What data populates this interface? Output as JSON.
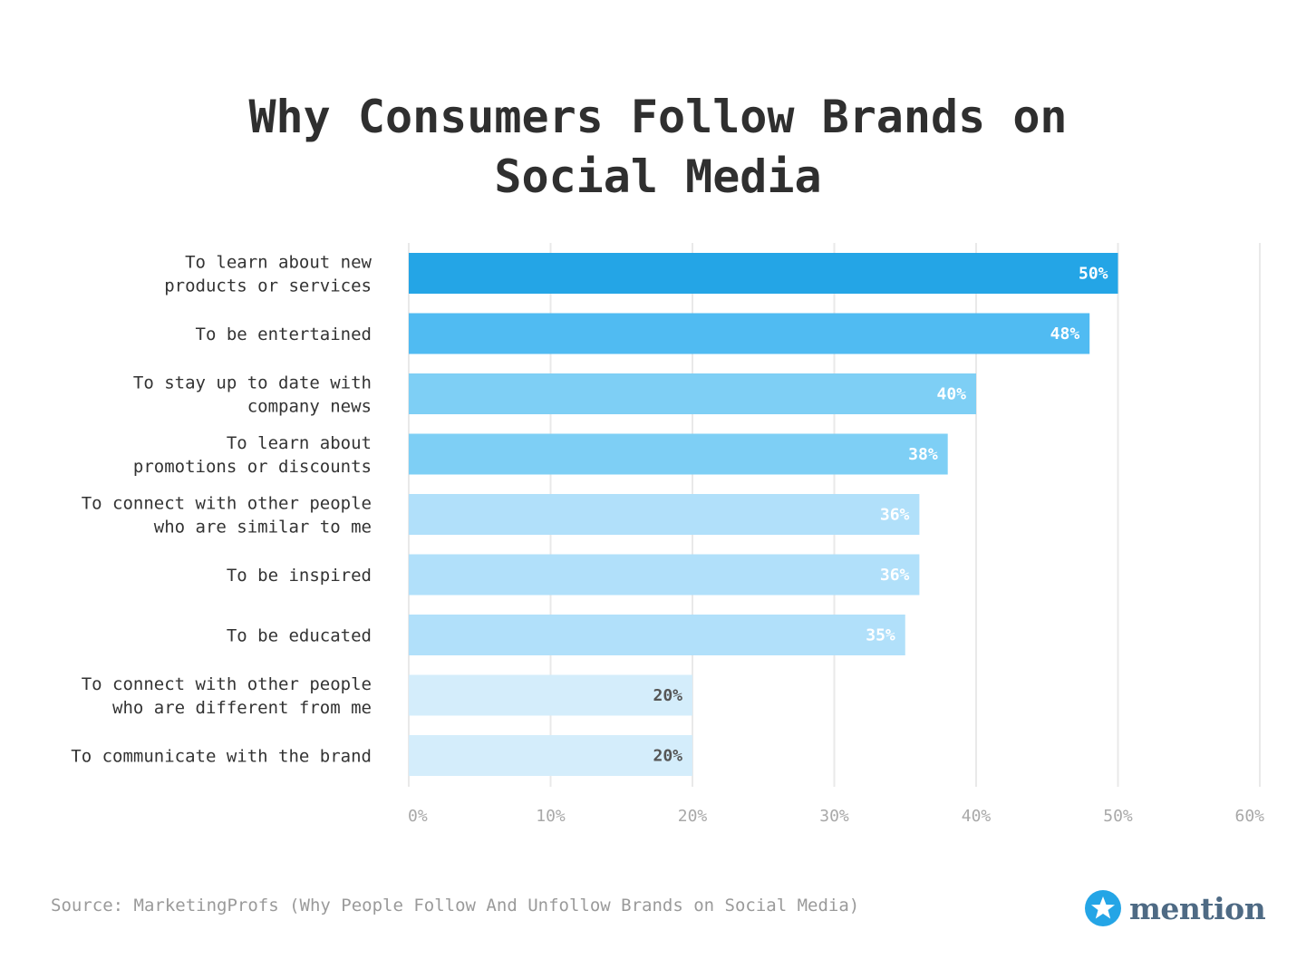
{
  "chart_data": {
    "type": "bar",
    "orientation": "horizontal",
    "title_lines": [
      "Why Consumers Follow Brands on",
      "Social Media"
    ],
    "categories": [
      [
        "To learn about new",
        "products or services"
      ],
      [
        "To be entertained"
      ],
      [
        "To stay up to date with",
        "company news"
      ],
      [
        "To learn about",
        "promotions or discounts"
      ],
      [
        "To connect with other people",
        "who are similar to me"
      ],
      [
        "To be inspired"
      ],
      [
        "To be educated"
      ],
      [
        "To connect with other people",
        "who are different from me"
      ],
      [
        "To communicate with the brand"
      ]
    ],
    "values": [
      50,
      48,
      40,
      38,
      36,
      36,
      35,
      20,
      20
    ],
    "value_labels": [
      "50%",
      "48%",
      "40%",
      "38%",
      "36%",
      "36%",
      "35%",
      "20%",
      "20%"
    ],
    "bar_colors": [
      "#24a5e6",
      "#50bbf2",
      "#7ecff5",
      "#7ecff5",
      "#b1e0fa",
      "#b1e0fa",
      "#b1e0fa",
      "#d4edfb",
      "#d4edfb"
    ],
    "label_colors": [
      "#ffffff",
      "#ffffff",
      "#ffffff",
      "#ffffff",
      "#ffffff",
      "#ffffff",
      "#ffffff",
      "#555555",
      "#555555"
    ],
    "xlim": [
      0,
      60
    ],
    "xticks": [
      0,
      10,
      20,
      30,
      40,
      50,
      60
    ],
    "xtick_labels": [
      "0%",
      "10%",
      "20%",
      "30%",
      "40%",
      "50%",
      "60%"
    ],
    "grid": true,
    "xlabel": "",
    "ylabel": ""
  },
  "footer": {
    "source": "Source: MarketingProfs (Why People Follow And Unfollow Brands on Social Media)",
    "brand": "mention"
  },
  "colors": {
    "title": "#2f2f2f",
    "category_text": "#333333",
    "grid": "#e9e9e9",
    "tick_text": "#a8a8a8",
    "logo_circle": "#24a5e6",
    "logo_text": "#4e6a84"
  },
  "icons": {
    "logo": "star-in-circle-icon"
  }
}
